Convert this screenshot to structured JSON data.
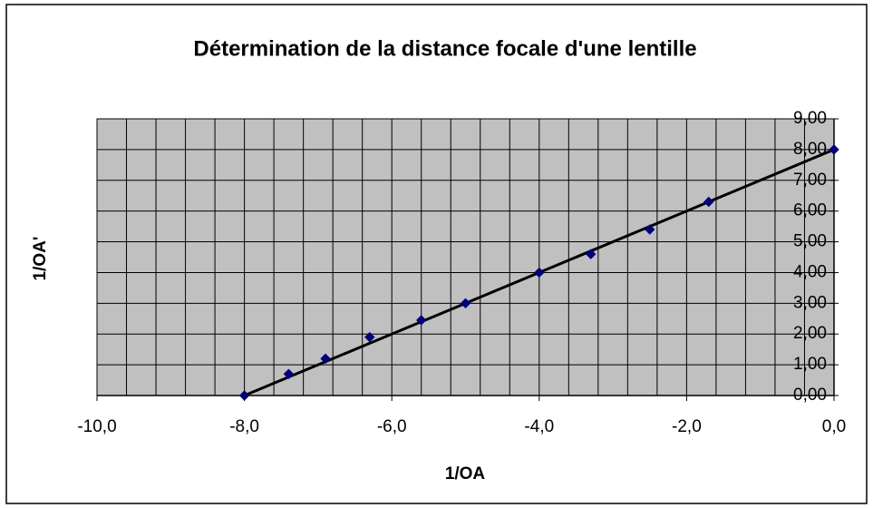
{
  "chart_data": {
    "type": "scatter",
    "title": "Détermination de la distance focale d'une lentille",
    "xlabel": "1/OA",
    "ylabel": "1/OA'",
    "series": [
      {
        "name": null,
        "color": "#000080",
        "x": [
          -8,
          -7.4,
          -6.9,
          -6.3,
          -5.6,
          -5,
          -4,
          -3.3,
          -2.5,
          -1.7,
          0
        ],
        "values": [
          0,
          0.7,
          1.2,
          1.9,
          2.45,
          3,
          4,
          4.6,
          5.4,
          6.3,
          8
        ]
      }
    ],
    "trendline": {
      "color": "#000000",
      "x": [
        -8,
        0
      ],
      "values": [
        0,
        8
      ]
    },
    "xlim": [
      -10,
      0
    ],
    "ylim": [
      0,
      9
    ],
    "xticks": [
      {
        "value": -10,
        "label": "-10,0"
      },
      {
        "value": -8,
        "label": "-8,0"
      },
      {
        "value": -6,
        "label": "-6,0"
      },
      {
        "value": -4,
        "label": "-4,0"
      },
      {
        "value": -2,
        "label": "-2,0"
      },
      {
        "value": 0,
        "label": "0,0"
      }
    ],
    "yticks": [
      {
        "value": 0,
        "label": "0,00"
      },
      {
        "value": 1,
        "label": "1,00"
      },
      {
        "value": 2,
        "label": "2,00"
      },
      {
        "value": 3,
        "label": "3,00"
      },
      {
        "value": 4,
        "label": "4,00"
      },
      {
        "value": 5,
        "label": "5,00"
      },
      {
        "value": 6,
        "label": "6,00"
      },
      {
        "value": 7,
        "label": "7,00"
      },
      {
        "value": 8,
        "label": "8,00"
      },
      {
        "value": 9,
        "label": "9,00"
      }
    ],
    "x_minor_grid_step": 0.4,
    "grid": true,
    "plot_background": "#c0c0c0"
  }
}
